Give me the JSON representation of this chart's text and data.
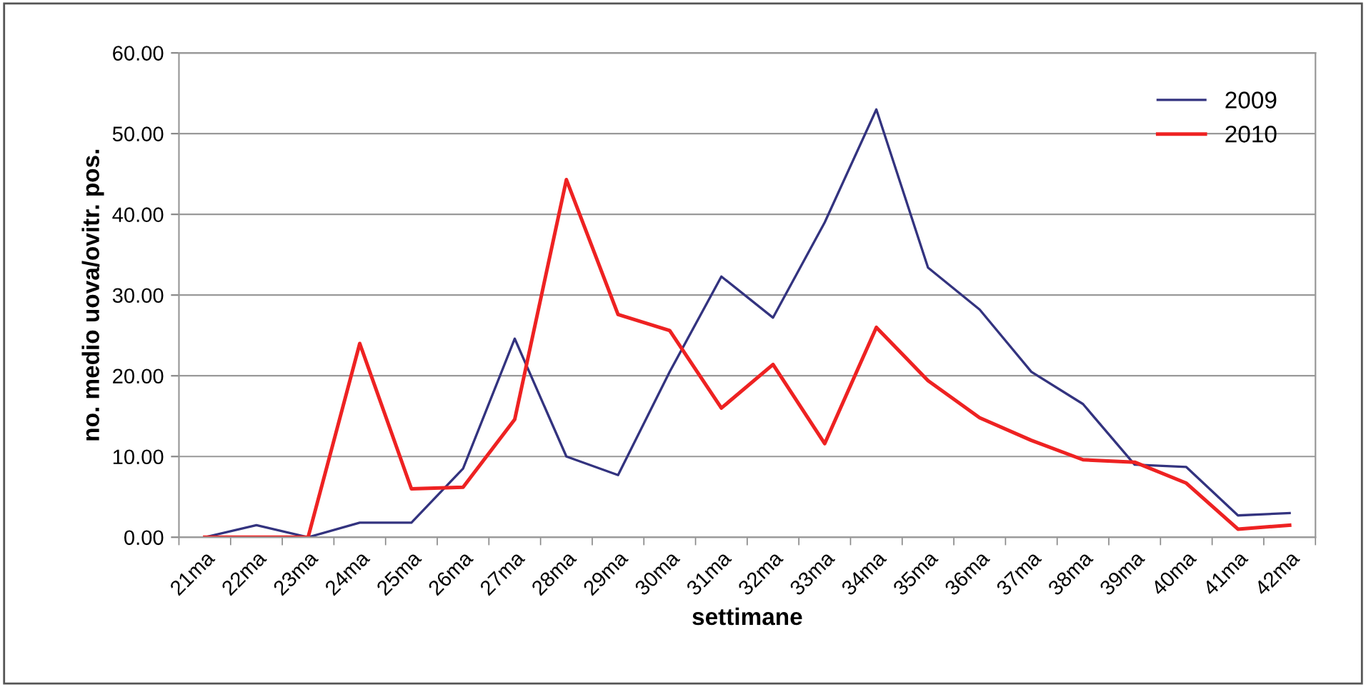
{
  "chart_data": {
    "type": "line",
    "xlabel": "settimane",
    "ylabel": "no. medio uova/ovitr. pos.",
    "categories": [
      "21ma",
      "22ma",
      "23ma",
      "24ma",
      "25ma",
      "26ma",
      "27ma",
      "28ma",
      "29ma",
      "30ma",
      "31ma",
      "32ma",
      "33ma",
      "34ma",
      "35ma",
      "36ma",
      "37ma",
      "38ma",
      "39ma",
      "40ma",
      "41ma",
      "42ma"
    ],
    "series": [
      {
        "name": "2009",
        "color": "#33337f",
        "values": [
          0,
          1.5,
          0,
          1.8,
          1.8,
          8.5,
          24.6,
          10,
          7.7,
          20.5,
          32.3,
          27.2,
          39,
          53,
          33.4,
          28.2,
          20.5,
          16.5,
          9,
          8.7,
          2.7,
          3
        ]
      },
      {
        "name": "2010",
        "color": "#ee2222",
        "values": [
          0,
          0,
          0,
          24,
          6,
          6.2,
          14.6,
          44.3,
          27.6,
          25.6,
          16,
          21.4,
          11.6,
          26,
          19.4,
          14.8,
          12,
          9.6,
          9.3,
          6.7,
          1,
          1.5
        ]
      }
    ],
    "ylim": [
      0,
      60
    ],
    "yticks": [
      {
        "value": 0,
        "label": "0.00"
      },
      {
        "value": 10,
        "label": "10.00"
      },
      {
        "value": 20,
        "label": "20.00"
      },
      {
        "value": 30,
        "label": "30.00"
      },
      {
        "value": 40,
        "label": "40.00"
      },
      {
        "value": 50,
        "label": "50.00"
      },
      {
        "value": 60,
        "label": "60.00"
      }
    ],
    "grid": "y",
    "legend": "top right",
    "marker": "none",
    "line_style": "solid"
  }
}
